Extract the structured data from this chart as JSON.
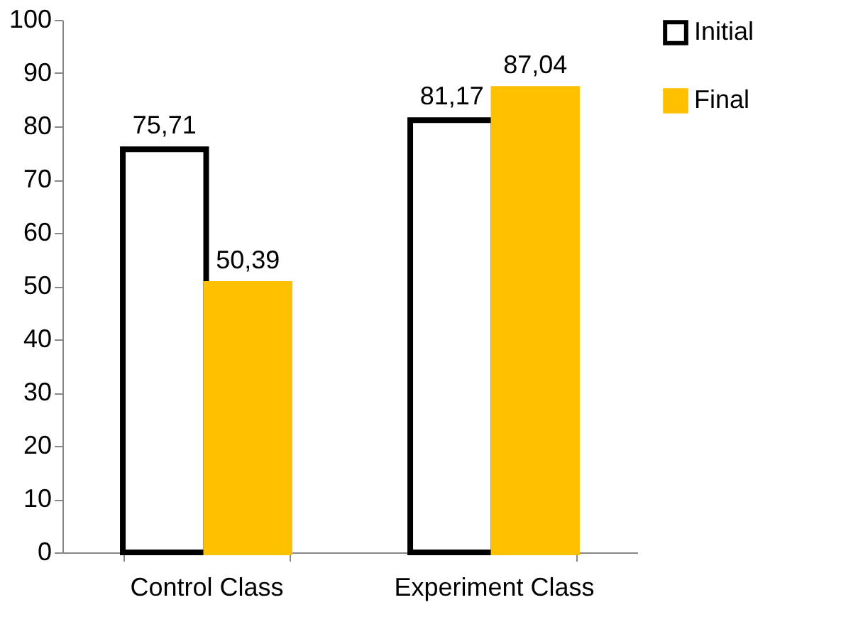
{
  "chart_data": {
    "type": "bar",
    "categories": [
      "Control Class",
      "Experiment Class"
    ],
    "series": [
      {
        "name": "Initial",
        "color": "#ffffff",
        "values": [
          75.71,
          81.17
        ],
        "value_labels": [
          "75,71",
          "81,17"
        ]
      },
      {
        "name": "Final",
        "color": "#ffc000",
        "values": [
          50.39,
          87.04
        ],
        "value_labels": [
          "50,39",
          "87,04"
        ]
      }
    ],
    "ylim": [
      0,
      100
    ],
    "yticks": [
      0,
      10,
      20,
      30,
      40,
      50,
      60,
      70,
      80,
      90,
      100
    ],
    "grid": false,
    "legend": "right"
  }
}
